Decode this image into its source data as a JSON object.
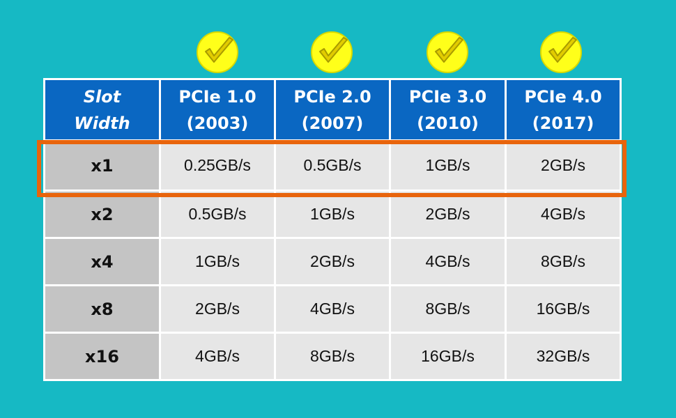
{
  "table": {
    "header": {
      "slot": [
        "Slot",
        "Width"
      ],
      "columns": [
        {
          "lines": [
            "PCIe 1.0",
            "(2003)"
          ]
        },
        {
          "lines": [
            "PCIe 2.0",
            "(2007)"
          ]
        },
        {
          "lines": [
            "PCIe 3.0",
            "(2010)"
          ]
        },
        {
          "lines": [
            "PCIe 4.0",
            "(2017)"
          ]
        }
      ]
    },
    "rows": [
      {
        "label": "x1",
        "values": [
          "0.25GB/s",
          "0.5GB/s",
          "1GB/s",
          "2GB/s"
        ]
      },
      {
        "label": "x2",
        "values": [
          "0.5GB/s",
          "1GB/s",
          "2GB/s",
          "4GB/s"
        ]
      },
      {
        "label": "x4",
        "values": [
          "1GB/s",
          "2GB/s",
          "4GB/s",
          "8GB/s"
        ]
      },
      {
        "label": "x8",
        "values": [
          "2GB/s",
          "4GB/s",
          "8GB/s",
          "16GB/s"
        ]
      },
      {
        "label": "x16",
        "values": [
          "4GB/s",
          "8GB/s",
          "16GB/s",
          "32GB/s"
        ]
      }
    ]
  },
  "icons": {
    "checkmark_icon": "checkmark-icon",
    "checkmark_count": 4
  },
  "colors": {
    "background": "#16b9c4",
    "header_bg": "#0a67c2",
    "row_label_bg": "#c4c4c4",
    "cell_bg": "#e6e6e6",
    "highlight": "#e8640c",
    "check_fill": "#ffff1a",
    "check_mark": "#d9c400"
  }
}
